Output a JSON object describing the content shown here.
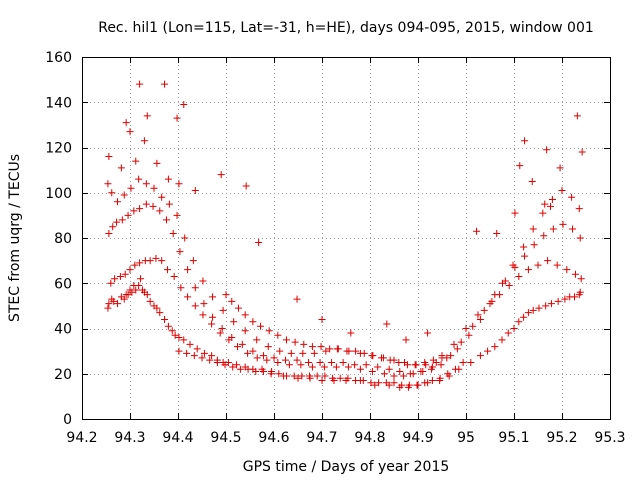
{
  "chart_data": {
    "type": "scatter",
    "title": "Rec. hil1 (Lon=115, Lat=-31, h=HE), days 094-095, 2015, window 001",
    "xlabel": "GPS time / Days of year 2015",
    "ylabel": "STEC from uqrg / TECUs",
    "xlim": [
      94.2,
      95.3
    ],
    "ylim": [
      0,
      160
    ],
    "xticks": [
      94.2,
      94.3,
      94.4,
      94.5,
      94.6,
      94.7,
      94.8,
      94.9,
      95,
      95.1,
      95.2,
      95.3
    ],
    "xtick_labels": [
      "94.2",
      "94.3",
      "94.4",
      "94.5",
      "94.6",
      "94.7",
      "94.8",
      "94.9",
      "95",
      "95.1",
      "95.2",
      "95.3"
    ],
    "yticks": [
      0,
      20,
      40,
      60,
      80,
      100,
      120,
      140,
      160
    ],
    "ytick_labels": [
      "0",
      "20",
      "40",
      "60",
      "80",
      "100",
      "120",
      "140",
      "160"
    ],
    "grid": true,
    "legend": "none",
    "marker": "plus",
    "color": "#e00000",
    "series": [
      {
        "x": [
          94.254,
          94.256,
          94.262,
          94.266,
          94.274,
          94.282,
          94.288,
          94.292,
          94.296,
          94.3,
          94.304,
          94.308,
          94.312,
          94.318,
          94.322,
          94.326,
          94.33,
          94.336,
          94.342,
          94.35,
          94.356,
          94.362,
          94.372,
          94.38,
          94.388,
          94.394,
          94.402,
          94.412,
          94.425,
          94.44,
          94.455,
          94.47,
          94.482,
          94.494,
          94.505,
          94.522,
          94.54,
          94.556,
          94.575,
          94.595,
          94.62,
          94.65,
          94.675,
          94.7,
          94.725,
          94.75,
          94.78,
          94.81,
          94.84,
          94.862,
          94.88,
          94.9,
          94.92,
          94.945,
          94.965,
          94.985,
          95.01,
          95.03,
          95.045,
          95.06,
          95.075,
          95.088,
          95.1,
          95.11,
          95.12,
          95.13,
          95.14,
          95.152,
          95.166,
          95.178,
          95.192,
          95.206,
          95.216,
          95.226,
          95.236,
          95.238
        ],
        "y": [
          49,
          51,
          53,
          52,
          51,
          54,
          53,
          55,
          55,
          57,
          56,
          59,
          57,
          59,
          62,
          57,
          56,
          55,
          52,
          50,
          49,
          47,
          44,
          41,
          39,
          37,
          36,
          35,
          33,
          31,
          29,
          28,
          26,
          25,
          25,
          24,
          23,
          22,
          22,
          21,
          19,
          18,
          18,
          17,
          17,
          17,
          17,
          15,
          15,
          14,
          14,
          15,
          16,
          17,
          19,
          22,
          25,
          28,
          30,
          32,
          35,
          38,
          40,
          43,
          45,
          47,
          48,
          49,
          50,
          51,
          52,
          53,
          54,
          54,
          55,
          56
        ]
      },
      {
        "x": [
          94.26,
          94.268,
          94.28,
          94.29,
          94.3,
          94.31,
          94.32,
          94.332,
          94.342,
          94.354,
          94.366,
          94.378,
          94.392,
          94.406,
          94.42,
          94.436,
          94.452,
          94.47,
          94.488,
          94.506,
          94.524,
          94.545,
          94.565,
          94.585,
          94.608,
          94.632,
          94.656,
          94.68,
          94.705,
          94.73,
          94.755,
          94.78,
          94.805,
          94.83,
          94.85,
          94.87,
          94.89,
          94.91,
          94.93,
          94.95,
          94.975,
          95.0,
          95.025,
          95.05,
          95.07,
          95.09,
          95.11,
          95.13,
          95.15,
          95.17,
          95.19,
          95.21,
          95.228,
          95.24
        ],
        "y": [
          60,
          62,
          63,
          64,
          66,
          68,
          69,
          70,
          70,
          71,
          70,
          66,
          63,
          58,
          54,
          50,
          46,
          42,
          38,
          35,
          32,
          29,
          27,
          26,
          25,
          24,
          24,
          23,
          23,
          23,
          23,
          22,
          21,
          20,
          19,
          19,
          20,
          21,
          23,
          27,
          33,
          40,
          46,
          51,
          55,
          59,
          63,
          66,
          68,
          70,
          68,
          66,
          64,
          62
        ]
      },
      {
        "x": [
          94.256,
          94.264,
          94.272,
          94.284,
          94.296,
          94.308,
          94.32,
          94.334,
          94.348,
          94.362,
          94.376,
          94.39,
          94.404,
          94.42,
          94.436,
          94.454,
          94.472,
          94.492,
          94.512,
          94.534,
          94.556,
          94.578,
          94.6,
          94.624,
          94.648,
          94.672,
          94.696,
          94.72,
          94.744,
          94.768,
          94.792,
          94.816,
          94.84,
          94.862,
          94.884,
          94.906,
          94.928,
          94.948,
          94.968,
          94.99,
          95.014,
          95.038,
          95.06,
          95.082,
          95.102,
          95.122,
          95.142,
          95.162,
          95.182,
          95.202,
          95.222,
          95.238
        ],
        "y": [
          82,
          85,
          87,
          88,
          90,
          92,
          93,
          95,
          94,
          92,
          88,
          82,
          74,
          66,
          58,
          51,
          45,
          40,
          36,
          33,
          30,
          28,
          27,
          26,
          26,
          25,
          25,
          25,
          25,
          24,
          24,
          23,
          22,
          21,
          20,
          21,
          22,
          24,
          28,
          34,
          41,
          48,
          55,
          61,
          67,
          72,
          77,
          81,
          84,
          86,
          84,
          80
        ]
      },
      {
        "x": [
          94.254,
          94.262,
          94.274,
          94.288,
          94.302,
          94.318,
          94.334,
          94.35,
          94.366,
          94.382,
          94.398,
          94.414,
          94.432,
          94.452,
          94.472,
          94.494,
          94.516,
          94.54,
          94.564,
          94.588,
          94.612,
          94.636,
          94.66,
          94.684,
          94.708,
          94.732,
          94.756,
          94.78,
          94.804,
          94.828,
          94.85,
          94.872,
          94.894,
          94.916,
          94.938,
          94.96,
          94.982,
          95.006,
          95.03,
          95.054,
          95.076,
          95.098,
          95.12,
          95.14,
          95.16,
          95.18,
          95.2,
          95.22,
          95.236
        ],
        "y": [
          104,
          100,
          96,
          99,
          102,
          106,
          104,
          102,
          98,
          95,
          90,
          80,
          70,
          61,
          54,
          48,
          43,
          39,
          35,
          32,
          30,
          29,
          29,
          29,
          30,
          31,
          30,
          29,
          28,
          27,
          26,
          25,
          24,
          24,
          25,
          27,
          31,
          37,
          44,
          52,
          60,
          68,
          76,
          84,
          91,
          97,
          101,
          98,
          93
        ]
      },
      {
        "x": [
          94.256,
          94.282,
          94.292,
          94.3,
          94.312,
          94.32,
          94.33,
          94.336,
          94.356,
          94.372,
          94.38,
          94.398,
          94.402,
          94.412,
          94.436,
          94.49,
          94.542,
          94.568,
          94.648,
          94.7,
          94.76,
          94.835,
          94.875,
          94.92,
          95.022,
          95.064,
          95.102,
          95.112,
          95.122,
          95.138,
          95.164,
          95.168,
          95.176,
          95.196,
          95.232,
          95.242
        ],
        "y": [
          116,
          111,
          131,
          127,
          114,
          148,
          123,
          134,
          113,
          148,
          106,
          133,
          104,
          139,
          101,
          108,
          103,
          78,
          53,
          44,
          38,
          42,
          35,
          38,
          83,
          82,
          91,
          112,
          123,
          105,
          95,
          119,
          94,
          111,
          134,
          118
        ]
      },
      {
        "x": [
          94.5,
          94.512,
          94.526,
          94.54,
          94.556,
          94.572,
          94.59,
          94.608,
          94.626,
          94.644,
          94.662,
          94.68,
          94.698,
          94.716,
          94.734,
          94.752,
          94.77,
          94.788,
          94.806,
          94.824,
          94.842,
          94.86,
          94.878,
          94.896,
          94.914,
          94.932,
          94.95
        ],
        "y": [
          55,
          52,
          49,
          46,
          43,
          41,
          39,
          37,
          35,
          34,
          33,
          32,
          32,
          31,
          31,
          30,
          30,
          29,
          28,
          27,
          26,
          25,
          24,
          24,
          25,
          26,
          28
        ]
      },
      {
        "x": [
          94.402,
          94.418,
          94.434,
          94.45,
          94.466,
          94.482,
          94.498,
          94.514,
          94.53,
          94.546,
          94.562,
          94.578,
          94.594,
          94.61,
          94.626,
          94.642,
          94.658,
          94.674,
          94.69,
          94.706,
          94.722,
          94.738,
          94.754,
          94.77,
          94.786,
          94.802,
          94.818,
          94.834,
          94.85,
          94.866,
          94.882,
          94.898,
          94.914,
          94.93,
          94.946,
          94.962,
          94.978,
          94.994
        ],
        "y": [
          30,
          29,
          28,
          27,
          26,
          25,
          24,
          23,
          22,
          22,
          21,
          21,
          20,
          20,
          19,
          19,
          19,
          19,
          19,
          19,
          18,
          18,
          18,
          17,
          17,
          16,
          16,
          16,
          16,
          15,
          15,
          15,
          16,
          17,
          18,
          20,
          22,
          25
        ]
      }
    ]
  }
}
